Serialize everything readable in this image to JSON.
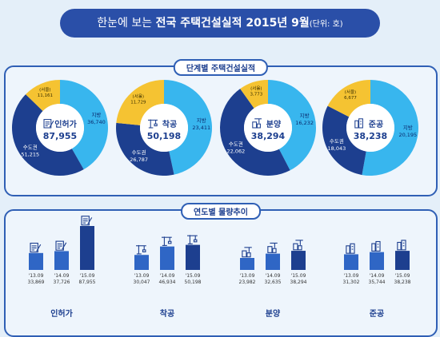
{
  "title": {
    "prefix": "한눈에 보는",
    "main": "전국 주택건설실적 2015년 9월",
    "unit": "(단위: 호)"
  },
  "colors": {
    "capital": "#1d3f8f",
    "local": "#38b6ee",
    "seoul": "#f5c332",
    "bar_dark": "#1d3f8f",
    "bar_mid": "#2f66c5"
  },
  "chart_data": [
    {
      "type": "pie",
      "panel_label": "단계별 주택건설실적",
      "charts": [
        {
          "name": "인허가",
          "total": "87,955",
          "icon": "permit-document-icon",
          "slices": [
            {
              "label": "수도권",
              "value": 51215,
              "value_label": "51,215"
            },
            {
              "label": "지방",
              "value": 36740,
              "value_label": "36,740"
            },
            {
              "label": "(서울)",
              "value": 11161,
              "value_label": "11,161"
            }
          ]
        },
        {
          "name": "착공",
          "total": "50,198",
          "icon": "crane-icon",
          "slices": [
            {
              "label": "수도권",
              "value": 26787,
              "value_label": "26,787"
            },
            {
              "label": "지방",
              "value": 23411,
              "value_label": "23,411"
            },
            {
              "label": "(서울)",
              "value": 11729,
              "value_label": "11,729"
            }
          ]
        },
        {
          "name": "분양",
          "total": "38,294",
          "icon": "building-crane-icon",
          "slices": [
            {
              "label": "수도권",
              "value": 22062,
              "value_label": "22,062"
            },
            {
              "label": "지방",
              "value": 16232,
              "value_label": "16,232"
            },
            {
              "label": "(서울)",
              "value": 3773,
              "value_label": "3,773"
            }
          ]
        },
        {
          "name": "준공",
          "total": "38,238",
          "icon": "buildings-icon",
          "slices": [
            {
              "label": "수도권",
              "value": 18043,
              "value_label": "18,043"
            },
            {
              "label": "지방",
              "value": 20195,
              "value_label": "20,195"
            },
            {
              "label": "(서울)",
              "value": 6677,
              "value_label": "6,677"
            }
          ]
        }
      ]
    },
    {
      "type": "bar",
      "panel_label": "연도별 물량추이",
      "groups": [
        {
          "name": "인허가",
          "icon": "permit-document-icon",
          "categories": [
            "'13.09",
            "'14.09",
            "'15.09"
          ],
          "values": [
            33869,
            37726,
            87955
          ],
          "value_labels": [
            "33,869",
            "37,726",
            "87,955"
          ]
        },
        {
          "name": "착공",
          "icon": "crane-icon",
          "categories": [
            "'13.09",
            "'14.09",
            "'15.09"
          ],
          "values": [
            30047,
            46934,
            50198
          ],
          "value_labels": [
            "30,047",
            "46,934",
            "50,198"
          ]
        },
        {
          "name": "분양",
          "icon": "building-crane-icon",
          "categories": [
            "'13.09",
            "'14.09",
            "'15.09"
          ],
          "values": [
            23982,
            32635,
            38294
          ],
          "value_labels": [
            "23,982",
            "32,635",
            "38,294"
          ]
        },
        {
          "name": "준공",
          "icon": "buildings-icon",
          "categories": [
            "'13.09",
            "'14.09",
            "'15.09"
          ],
          "values": [
            31302,
            35744,
            38238
          ],
          "value_labels": [
            "31,302",
            "35,744",
            "38,238"
          ]
        }
      ]
    }
  ]
}
